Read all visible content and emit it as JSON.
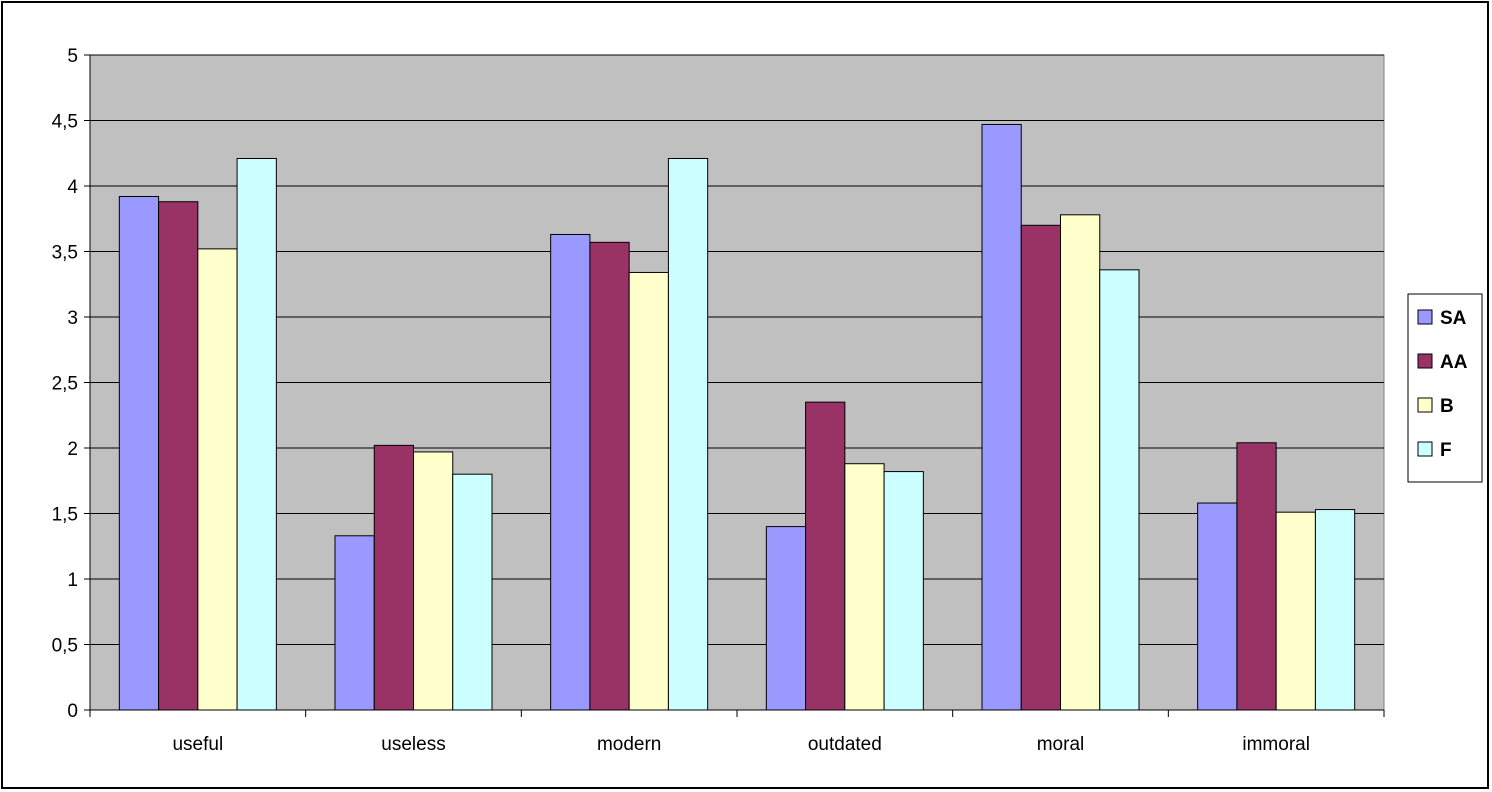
{
  "chart_data": {
    "type": "bar",
    "categories": [
      "useful",
      "useless",
      "modern",
      "outdated",
      "moral",
      "immoral"
    ],
    "series": [
      {
        "name": "SA",
        "color": "#9999ff",
        "values": [
          3.92,
          1.33,
          3.63,
          1.4,
          4.47,
          1.58
        ]
      },
      {
        "name": "AA",
        "color": "#993366",
        "values": [
          3.88,
          2.02,
          3.57,
          2.35,
          3.7,
          2.04
        ]
      },
      {
        "name": "B",
        "color": "#ffffcc",
        "values": [
          3.52,
          1.97,
          3.34,
          1.88,
          3.78,
          1.51
        ]
      },
      {
        "name": "F",
        "color": "#ccffff",
        "values": [
          4.21,
          1.8,
          4.21,
          1.82,
          3.36,
          1.53
        ]
      }
    ],
    "yticks": [
      "0",
      "0,5",
      "1",
      "1,5",
      "2",
      "2,5",
      "3",
      "3,5",
      "4",
      "4,5",
      "5"
    ],
    "ylim": [
      0,
      5
    ],
    "ystep": 0.5,
    "grid": true,
    "plot_background": "#c0c0c0",
    "legend_position": "right"
  }
}
